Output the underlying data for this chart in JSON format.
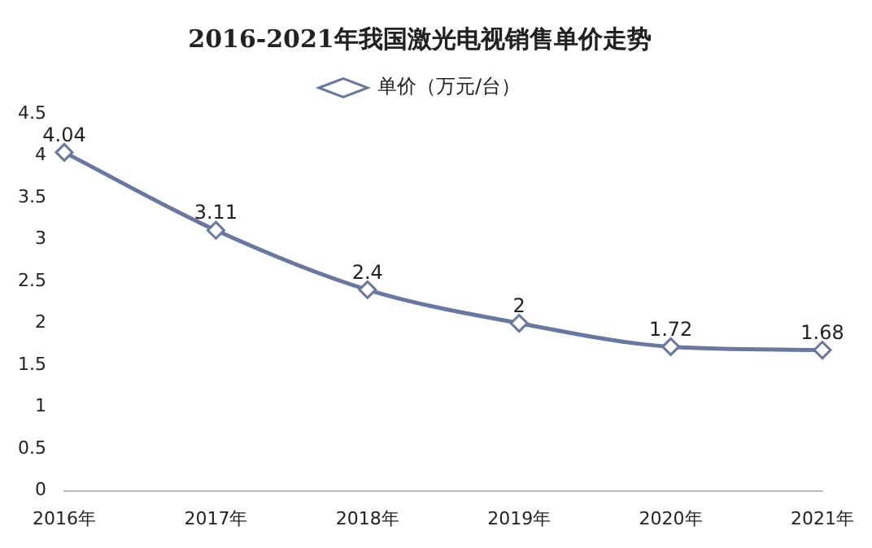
{
  "chart_data": {
    "type": "line",
    "title": "2016-2021年我国激光电视销售单价走势",
    "categories": [
      "2016年",
      "2017年",
      "2018年",
      "2019年",
      "2020年",
      "2021年"
    ],
    "series": [
      {
        "name": "单价（万元/台）",
        "color": "#6a78a0",
        "values": [
          4.04,
          3.11,
          2.4,
          2,
          1.72,
          1.68
        ]
      }
    ],
    "ylim": [
      0,
      4.5
    ],
    "yticks": [
      0,
      0.5,
      1,
      1.5,
      2,
      2.5,
      3,
      3.5,
      4,
      4.5
    ],
    "grid": false,
    "legend": "top",
    "marker": "diamond",
    "line_style": "solid",
    "data_labels": true
  }
}
